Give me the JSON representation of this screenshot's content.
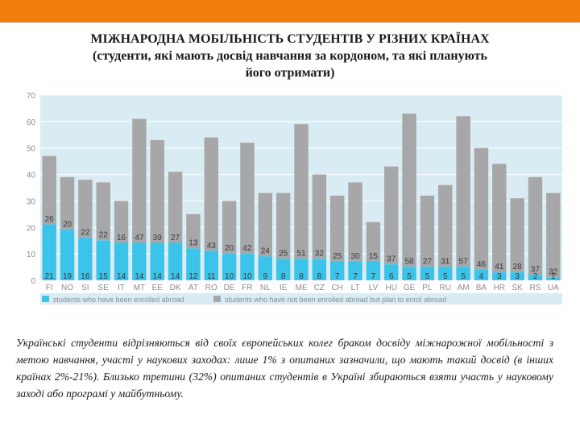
{
  "title": {
    "line1": "МІЖНАРОДНА МОБІЛЬНІСТЬ СТУДЕНТІВ У РІЗНИХ КРАЇНАХ",
    "line2": "(студенти, які мають досвід навчання за кордоном, та які планують",
    "line3": "його отримати)"
  },
  "colors": {
    "top_bar": "#f27d0c",
    "plot_background": "#d9ecf4",
    "enrolled": "#3cc3ea",
    "plan": "#a7a7a9",
    "axis_text": "#8c8c8c",
    "value_label_dark": "#3a3a3a",
    "category_label": "#ffffff"
  },
  "chart_data": {
    "type": "bar",
    "stacked": true,
    "ylim": [
      0,
      70
    ],
    "yticks": [
      0,
      10,
      20,
      30,
      40,
      50,
      60,
      70
    ],
    "grid": true,
    "legend_position": "bottom",
    "categories": [
      "FI",
      "NO",
      "SI",
      "SE",
      "IT",
      "MT",
      "EE",
      "DK",
      "AT",
      "RO",
      "DE",
      "FR",
      "NL",
      "IE",
      "ME",
      "CZ",
      "CH",
      "LT",
      "LV",
      "HU",
      "GE",
      "PL",
      "RU",
      "AM",
      "BA",
      "HR",
      "SK",
      "RS",
      "UA"
    ],
    "series": [
      {
        "name": "students who have been enrolled abroad",
        "color": "#3cc3ea",
        "values": [
          21,
          19,
          16,
          15,
          14,
          14,
          14,
          14,
          12,
          11,
          10,
          10,
          9,
          8,
          8,
          8,
          7,
          7,
          7,
          6,
          5,
          5,
          5,
          5,
          4,
          3,
          3,
          2,
          1
        ]
      },
      {
        "name": "students who have not been enrolled abroad but plan to enrol abroad",
        "color": "#a7a7a9",
        "values": [
          26,
          20,
          22,
          22,
          16,
          47,
          39,
          27,
          13,
          43,
          20,
          42,
          24,
          25,
          51,
          32,
          25,
          30,
          15,
          37,
          58,
          27,
          31,
          57,
          46,
          41,
          28,
          37,
          32
        ]
      }
    ]
  },
  "caption": "Українські студенти відрізняються від своїх європейських колег браком досвіду міжнарожної мобільності з метою навчання, участі у наукових заходах: лише 1% з опитаних зазначили, що мають такий досвід (в інших країнах 2%-21%). Близько третини (32%) опитаних студентів в Україні збираються взяти участь у науковому заході або програмі у майбутньому."
}
